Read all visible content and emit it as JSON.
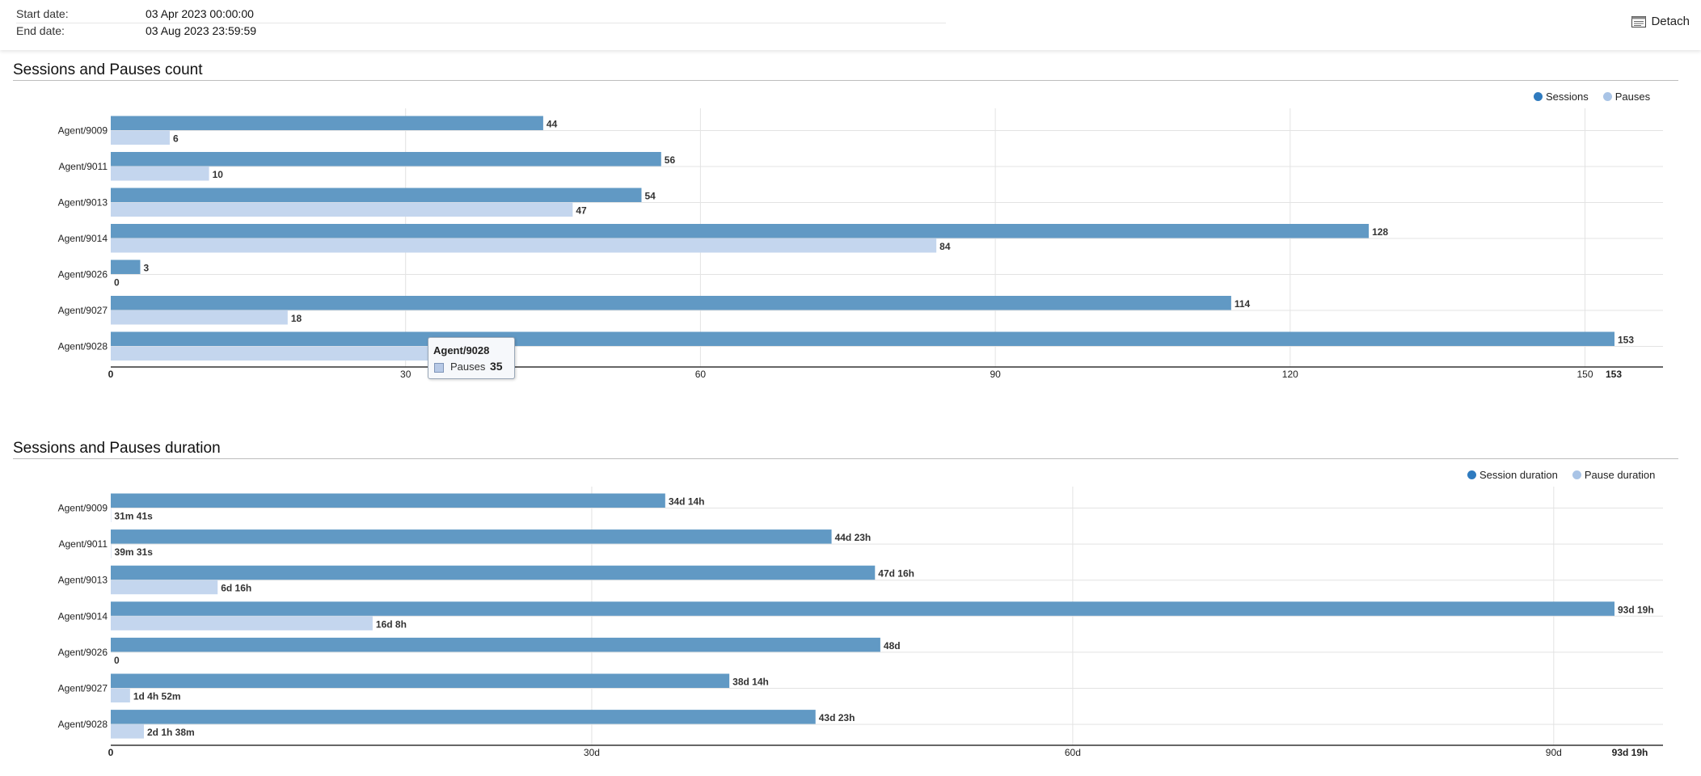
{
  "header": {
    "start_label": "Start date:",
    "start_value": "03 Apr 2023 00:00:00",
    "end_label": "End date:",
    "end_value": "03 Aug 2023 23:59:59",
    "detach_label": "Detach",
    "detach_icon": "detach-window-icon"
  },
  "colors": {
    "sessions": "#6199c4",
    "pauses": "#c4d6ee",
    "legend_sessions": "#2f7bbf",
    "legend_pauses": "#a9c4e6",
    "grid": "#e3e3e3",
    "axis": "#333333"
  },
  "tooltip": {
    "title": "Agent/9028",
    "series": "Pauses",
    "value": "35"
  },
  "chart_data": [
    {
      "type": "bar",
      "orientation": "horizontal",
      "title": "Sessions and Pauses count",
      "categories": [
        "Agent/9009",
        "Agent/9011",
        "Agent/9013",
        "Agent/9014",
        "Agent/9026",
        "Agent/9027",
        "Agent/9028"
      ],
      "series": [
        {
          "name": "Sessions",
          "values": [
            44,
            56,
            54,
            128,
            3,
            114,
            153
          ],
          "labels": [
            "44",
            "56",
            "54",
            "128",
            "3",
            "114",
            "153"
          ]
        },
        {
          "name": "Pauses",
          "values": [
            6,
            10,
            47,
            84,
            0,
            18,
            35
          ],
          "labels": [
            "6",
            "10",
            "47",
            "84",
            "0",
            "18",
            ""
          ]
        }
      ],
      "xlim": [
        0,
        153
      ],
      "ticks": [
        0,
        30,
        60,
        90,
        120,
        150
      ],
      "tick_labels": [
        "0",
        "30",
        "60",
        "90",
        "120",
        "150"
      ],
      "max_label": "153",
      "legend": "top-right",
      "grid": true
    },
    {
      "type": "bar",
      "orientation": "horizontal",
      "title": "Sessions and Pauses duration",
      "unit": "days",
      "categories": [
        "Agent/9009",
        "Agent/9011",
        "Agent/9013",
        "Agent/9014",
        "Agent/9026",
        "Agent/9027",
        "Agent/9028"
      ],
      "series": [
        {
          "name": "Session duration",
          "values": [
            34.583,
            44.958,
            47.667,
            93.792,
            48.0,
            38.583,
            43.958
          ],
          "labels": [
            "34d 14h",
            "44d 23h",
            "47d 16h",
            "93d 19h",
            "48d",
            "38d 14h",
            "43d 23h"
          ]
        },
        {
          "name": "Pause duration",
          "values": [
            0.022,
            0.027,
            6.667,
            16.333,
            0,
            1.203,
            2.068
          ],
          "labels": [
            "31m 41s",
            "39m 31s",
            "6d 16h",
            "16d 8h",
            "0",
            "1d 4h 52m",
            "2d 1h 38m"
          ]
        }
      ],
      "xlim": [
        0,
        93.792
      ],
      "ticks": [
        0,
        30,
        60,
        90
      ],
      "tick_labels": [
        "0",
        "30d",
        "60d",
        "90d"
      ],
      "max_label": "93d 19h",
      "legend": "top-right",
      "grid": true
    }
  ]
}
